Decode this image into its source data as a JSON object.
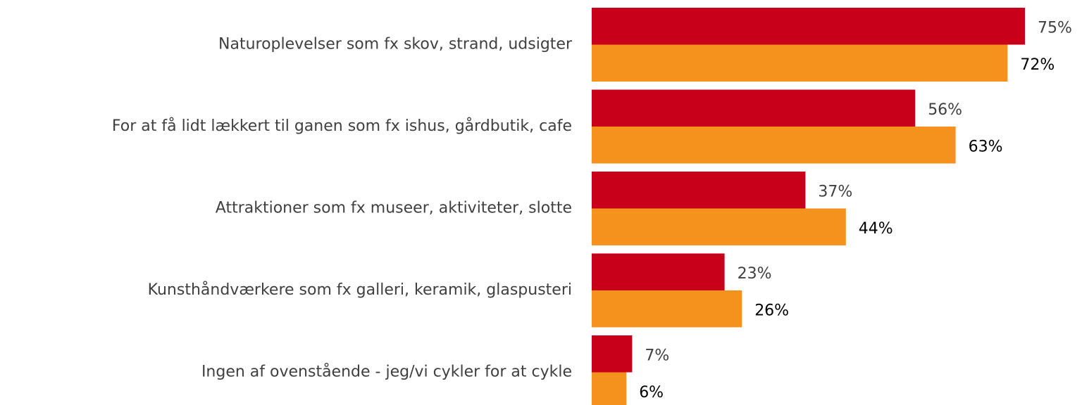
{
  "chart_data": {
    "type": "barh",
    "categories": [
      "Naturoplevelser som fx skov, strand, udsigter",
      "For at få lidt lækkert til ganen som fx ishus, gårdbutik, cafe",
      "Attraktioner som fx museer, aktiviteter, slotte",
      "Kunsthåndværkere som fx galleri, keramik, glaspusteri",
      "Ingen af ovenstående - jeg/vi cykler for at cykle"
    ],
    "series": [
      {
        "color": "#c8001a",
        "values": [
          75,
          56,
          37,
          23,
          7
        ],
        "value_labels": [
          "75%",
          "56%",
          "37%",
          "23%",
          "7%"
        ]
      },
      {
        "color": "#f5921e",
        "values": [
          72,
          63,
          44,
          26,
          6
        ],
        "value_labels": [
          "72%",
          "63%",
          "44%",
          "26%",
          "6%"
        ]
      }
    ]
  }
}
